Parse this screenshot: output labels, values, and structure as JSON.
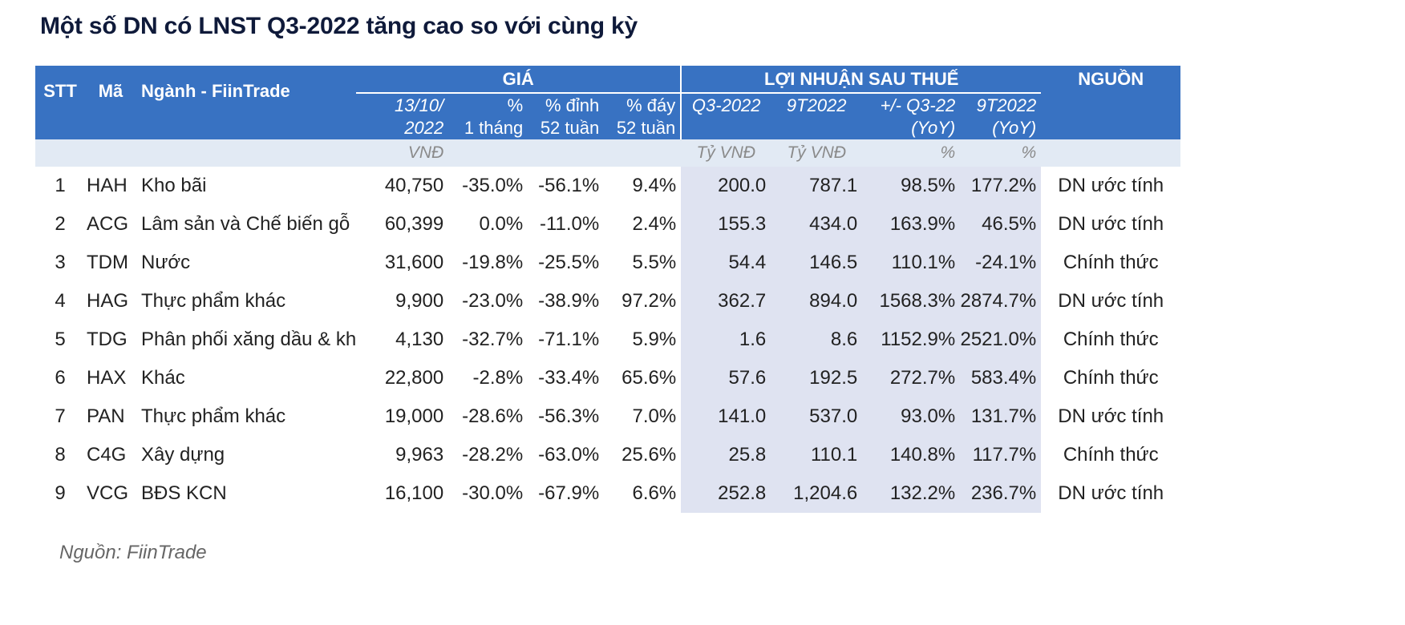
{
  "title": "Một số DN có LNST Q3-2022 tăng cao so với cùng kỳ",
  "headers": {
    "stt": "STT",
    "ma": "Mã",
    "nganh": "Ngành - FiinTrade",
    "gia_group": "GIÁ",
    "lnst_group": "LỢI NHUẬN SAU THUẾ",
    "nguon": "NGUỒN",
    "price_line1": "13/10/",
    "price_line2": "2022",
    "m1_line1": "%",
    "m1_line2": "1 tháng",
    "high_line1": "% đỉnh",
    "high_line2": "52 tuần",
    "low_line1": "% đáy",
    "low_line2": "52 tuần",
    "q3": "Q3-2022",
    "t9": "9T2022",
    "yoy_q3_line1": "+/- Q3-22",
    "yoy_q3_line2": "(YoY)",
    "yoy_9t_line1": "9T2022",
    "yoy_9t_line2": "(YoY)"
  },
  "units": {
    "price": "VNĐ",
    "q3": "Tỷ VNĐ",
    "t9": "Tỷ VNĐ",
    "yoy_q3": "%",
    "yoy_9t": "%"
  },
  "rows": [
    {
      "stt": "1",
      "ma": "HAH",
      "nganh": "Kho bãi",
      "price": "40,750",
      "m1": "-35.0%",
      "high": "-56.1%",
      "low": "9.4%",
      "q3": "200.0",
      "t9": "787.1",
      "yoy_q3": "98.5%",
      "yoy_9t": "177.2%",
      "nguon": "DN ước tính"
    },
    {
      "stt": "2",
      "ma": "ACG",
      "nganh": "Lâm sản và Chế biến gỗ",
      "price": "60,399",
      "m1": "0.0%",
      "high": "-11.0%",
      "low": "2.4%",
      "q3": "155.3",
      "t9": "434.0",
      "yoy_q3": "163.9%",
      "yoy_9t": "46.5%",
      "nguon": "DN ước tính"
    },
    {
      "stt": "3",
      "ma": "TDM",
      "nganh": "Nước",
      "price": "31,600",
      "m1": "-19.8%",
      "high": "-25.5%",
      "low": "5.5%",
      "q3": "54.4",
      "t9": "146.5",
      "yoy_q3": "110.1%",
      "yoy_9t": "-24.1%",
      "nguon": "Chính thức"
    },
    {
      "stt": "4",
      "ma": "HAG",
      "nganh": "Thực phẩm khác",
      "price": "9,900",
      "m1": "-23.0%",
      "high": "-38.9%",
      "low": "97.2%",
      "q3": "362.7",
      "t9": "894.0",
      "yoy_q3": "1568.3%",
      "yoy_9t": "2874.7%",
      "nguon": "DN ước tính"
    },
    {
      "stt": "5",
      "ma": "TDG",
      "nganh": "Phân phối xăng dầu & kh",
      "price": "4,130",
      "m1": "-32.7%",
      "high": "-71.1%",
      "low": "5.9%",
      "q3": "1.6",
      "t9": "8.6",
      "yoy_q3": "1152.9%",
      "yoy_9t": "2521.0%",
      "nguon": "Chính thức"
    },
    {
      "stt": "6",
      "ma": "HAX",
      "nganh": "Khác",
      "price": "22,800",
      "m1": "-2.8%",
      "high": "-33.4%",
      "low": "65.6%",
      "q3": "57.6",
      "t9": "192.5",
      "yoy_q3": "272.7%",
      "yoy_9t": "583.4%",
      "nguon": "Chính thức"
    },
    {
      "stt": "7",
      "ma": "PAN",
      "nganh": "Thực phẩm khác",
      "price": "19,000",
      "m1": "-28.6%",
      "high": "-56.3%",
      "low": "7.0%",
      "q3": "141.0",
      "t9": "537.0",
      "yoy_q3": "93.0%",
      "yoy_9t": "131.7%",
      "nguon": "DN ước tính"
    },
    {
      "stt": "8",
      "ma": "C4G",
      "nganh": "Xây dựng",
      "price": "9,963",
      "m1": "-28.2%",
      "high": "-63.0%",
      "low": "25.6%",
      "q3": "25.8",
      "t9": "110.1",
      "yoy_q3": "140.8%",
      "yoy_9t": "117.7%",
      "nguon": "Chính thức"
    },
    {
      "stt": "9",
      "ma": "VCG",
      "nganh": "BĐS KCN",
      "price": "16,100",
      "m1": "-30.0%",
      "high": "-67.9%",
      "low": "6.6%",
      "q3": "252.8",
      "t9": "1,204.6",
      "yoy_q3": "132.2%",
      "yoy_9t": "236.7%",
      "nguon": "DN ước tính"
    }
  ],
  "note": "Nguồn: FiinTrade",
  "colors": {
    "header_bg": "#3872c2",
    "units_bg": "#e2eaf4",
    "profit_shade": "#dfe3f1",
    "negative": "#e8352e",
    "positive": "#2db33a",
    "zero": "#f5b400",
    "title": "#0f1a3a"
  }
}
